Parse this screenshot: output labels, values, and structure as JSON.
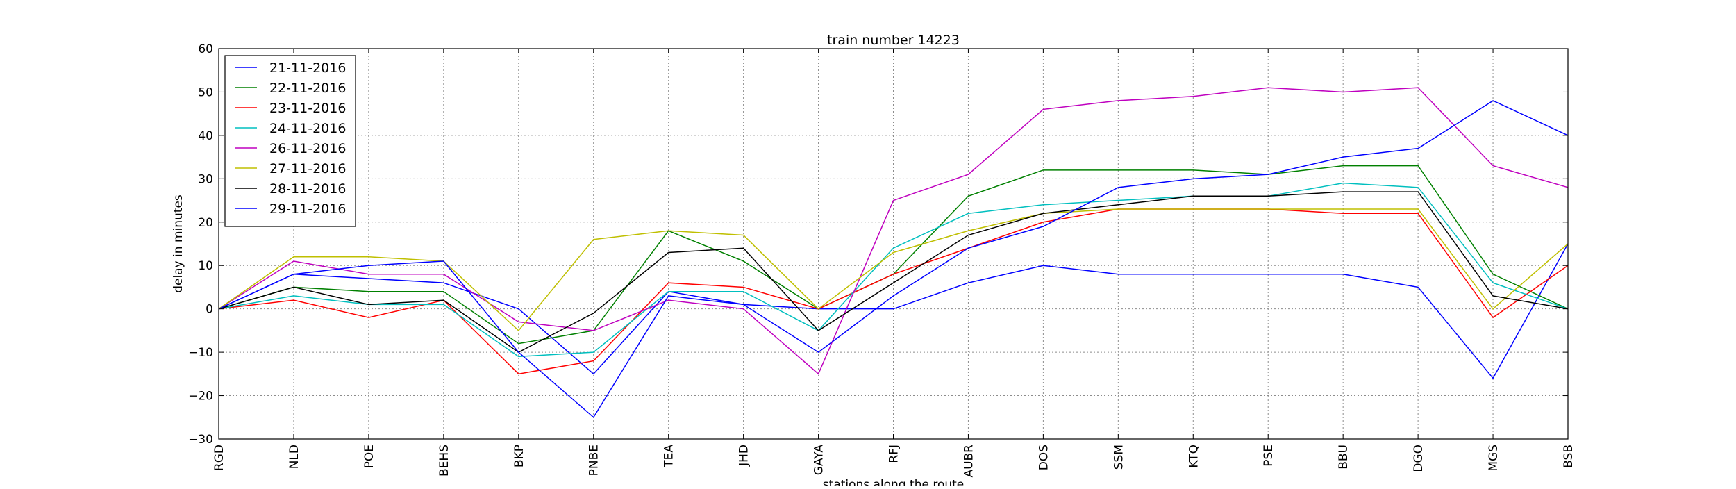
{
  "chart_data": {
    "type": "line",
    "title": "train number 14223",
    "xlabel": "stations along the route",
    "ylabel": "delay in minutes",
    "ylim": [
      -30,
      60
    ],
    "yticks": [
      -30,
      -20,
      -10,
      0,
      10,
      20,
      30,
      40,
      50,
      60
    ],
    "grid": true,
    "legend_position": "top-left",
    "categories": [
      "RGD",
      "NLD",
      "POE",
      "BEHS",
      "BKP",
      "PNBE",
      "TEA",
      "JHD",
      "GAYA",
      "RFJ",
      "AUBR",
      "DOS",
      "SSM",
      "KTQ",
      "PSE",
      "BBU",
      "DGO",
      "MGS",
      "BSB"
    ],
    "series": [
      {
        "name": "21-11-2016",
        "color": "#0000ff",
        "values": [
          0,
          8,
          7,
          6,
          0,
          -15,
          4,
          1,
          0,
          0,
          6,
          10,
          8,
          8,
          8,
          8,
          5,
          -16,
          15
        ]
      },
      {
        "name": "22-11-2016",
        "color": "#008000",
        "values": [
          0,
          5,
          4,
          4,
          -8,
          -5,
          18,
          11,
          0,
          8,
          26,
          32,
          32,
          32,
          31,
          33,
          33,
          8,
          0
        ]
      },
      {
        "name": "23-11-2016",
        "color": "#ff0000",
        "values": [
          0,
          2,
          -2,
          2,
          -15,
          -12,
          6,
          5,
          0,
          8,
          14,
          20,
          23,
          23,
          23,
          22,
          22,
          -2,
          10
        ]
      },
      {
        "name": "24-11-2016",
        "color": "#00bfbf",
        "values": [
          0,
          3,
          1,
          1,
          -11,
          -10,
          4,
          4,
          -5,
          14,
          22,
          24,
          25,
          26,
          26,
          29,
          28,
          6,
          0
        ]
      },
      {
        "name": "26-11-2016",
        "color": "#bf00bf",
        "values": [
          0,
          11,
          8,
          8,
          -3,
          -5,
          2,
          0,
          -15,
          25,
          31,
          46,
          48,
          49,
          51,
          50,
          51,
          33,
          28
        ]
      },
      {
        "name": "27-11-2016",
        "color": "#bfbf00",
        "values": [
          0,
          12,
          12,
          11,
          -5,
          16,
          18,
          17,
          0,
          13,
          18,
          22,
          23,
          23,
          23,
          23,
          23,
          0,
          15
        ]
      },
      {
        "name": "28-11-2016",
        "color": "#000000",
        "values": [
          0,
          5,
          1,
          2,
          -10,
          -1,
          13,
          14,
          -5,
          6,
          17,
          22,
          24,
          26,
          26,
          27,
          27,
          3,
          0
        ]
      },
      {
        "name": "29-11-2016",
        "color": "#0000ff",
        "values": [
          0,
          8,
          10,
          11,
          -10,
          -25,
          3,
          1,
          -10,
          3,
          14,
          19,
          28,
          30,
          31,
          35,
          37,
          48,
          40
        ]
      }
    ]
  }
}
